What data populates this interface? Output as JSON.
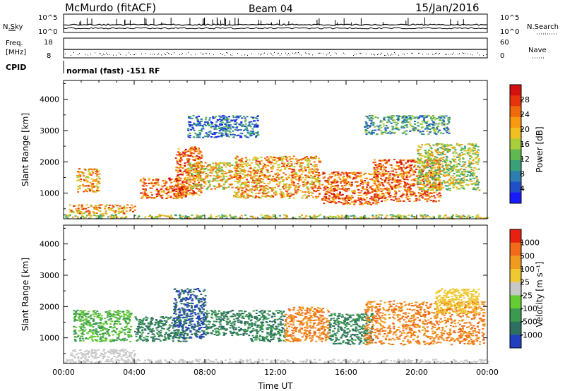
{
  "header": {
    "title": "McMurdo (fitACF)",
    "beam": "Beam 04",
    "date": "15/Jan/2016"
  },
  "aux_panels": {
    "nsky_label": "N.Sky",
    "nsearch_label": "N.Search",
    "noise_ticks_left": [
      "10^5",
      "10^0"
    ],
    "noise_ticks_right": [
      "10^5",
      "10^0"
    ],
    "freq_label_top": "Freq.",
    "freq_label_bottom": "[MHz]",
    "freq_ticks": [
      "18",
      "8"
    ],
    "nave_label": "Nave",
    "nave_ticks": [
      "60",
      "0"
    ],
    "cpid_label": "CPID",
    "cpid_value": "normal (fast) -151 RF"
  },
  "chart_data": [
    {
      "type": "heatmap",
      "name": "power",
      "ylabel": "Slant Range [km]",
      "ylim": [
        180,
        4600
      ],
      "yticks": [
        "1000",
        "2000",
        "3000",
        "4000"
      ],
      "xlim": [
        "00:00",
        "24:00"
      ],
      "colorbar": {
        "label": "Power [dB]",
        "ticks": [
          "4",
          "8",
          "12",
          "16",
          "20",
          "24",
          "28"
        ],
        "colors": [
          "#1a1aff",
          "#2050c8",
          "#2e7db0",
          "#3aa07a",
          "#5fb850",
          "#a8cf3a",
          "#f0c020",
          "#f79a10",
          "#f06a0c",
          "#e8340c",
          "#d41010"
        ]
      },
      "regions": [
        {
          "t0": 0.0,
          "t1": 24.0,
          "r0": 200,
          "r1": 330,
          "level": 5
        },
        {
          "t0": 0.3,
          "t1": 4.0,
          "r0": 350,
          "r1": 650,
          "level": 7
        },
        {
          "t0": 0.7,
          "t1": 2.0,
          "r0": 1050,
          "r1": 1800,
          "level": 7
        },
        {
          "t0": 4.3,
          "t1": 7.0,
          "r0": 850,
          "r1": 1500,
          "level": 8
        },
        {
          "t0": 6.3,
          "t1": 7.8,
          "r0": 950,
          "r1": 2500,
          "level": 8
        },
        {
          "t0": 7.0,
          "t1": 9.5,
          "r0": 1150,
          "r1": 2000,
          "level": 6
        },
        {
          "t0": 9.6,
          "t1": 14.5,
          "r0": 850,
          "r1": 2200,
          "level": 7
        },
        {
          "t0": 14.6,
          "t1": 17.8,
          "r0": 650,
          "r1": 1700,
          "level": 8
        },
        {
          "t0": 17.5,
          "t1": 21.3,
          "r0": 750,
          "r1": 2100,
          "level": 8
        },
        {
          "t0": 20.0,
          "t1": 23.5,
          "r0": 1100,
          "r1": 2600,
          "level": 5
        },
        {
          "t0": 7.0,
          "t1": 11.0,
          "r0": 2800,
          "r1": 3500,
          "level": 2
        },
        {
          "t0": 17.0,
          "t1": 21.8,
          "r0": 2900,
          "r1": 3500,
          "level": 3
        }
      ]
    },
    {
      "type": "heatmap",
      "name": "velocity",
      "ylabel": "Slant Range [km]",
      "xlabel": "Time UT",
      "ylim": [
        180,
        4600
      ],
      "yticks": [
        "1000",
        "2000",
        "3000",
        "4000"
      ],
      "xticks": [
        "00:00",
        "04:00",
        "08:00",
        "12:00",
        "16:00",
        "20:00",
        "00:00"
      ],
      "colorbar": {
        "label": "Velocity [m s⁻¹]",
        "ticks": [
          "1000",
          "500",
          "100",
          "25",
          "-25",
          "-100",
          "-500",
          "-1000"
        ],
        "colors": [
          "#2040c0",
          "#2e7060",
          "#3a9a50",
          "#66cc33",
          "#c8c8c8",
          "#f0c830",
          "#f09a20",
          "#f06a18",
          "#e82010"
        ]
      },
      "regions": [
        {
          "t0": 0.0,
          "t1": 24.0,
          "r0": 200,
          "r1": 330,
          "class": "ground"
        },
        {
          "t0": 0.3,
          "t1": 4.0,
          "r0": 350,
          "r1": 650,
          "class": "ground"
        },
        {
          "t0": 0.5,
          "t1": 3.8,
          "r0": 900,
          "r1": 1900,
          "class": "light-green"
        },
        {
          "t0": 4.0,
          "t1": 7.0,
          "r0": 900,
          "r1": 1700,
          "class": "dark-green"
        },
        {
          "t0": 6.2,
          "t1": 8.0,
          "r0": 1000,
          "r1": 2600,
          "class": "blue"
        },
        {
          "t0": 8.0,
          "t1": 10.5,
          "r0": 1100,
          "r1": 1900,
          "class": "dark-green"
        },
        {
          "t0": 10.5,
          "t1": 12.5,
          "r0": 900,
          "r1": 1900,
          "class": "dark-green"
        },
        {
          "t0": 12.5,
          "t1": 15.0,
          "r0": 900,
          "r1": 2000,
          "class": "orange"
        },
        {
          "t0": 15.0,
          "t1": 17.5,
          "r0": 800,
          "r1": 1800,
          "class": "dark-green"
        },
        {
          "t0": 17.0,
          "t1": 23.8,
          "r0": 800,
          "r1": 2200,
          "class": "orange"
        },
        {
          "t0": 21.0,
          "t1": 23.5,
          "r0": 1800,
          "r1": 2600,
          "class": "yellow"
        }
      ]
    }
  ]
}
